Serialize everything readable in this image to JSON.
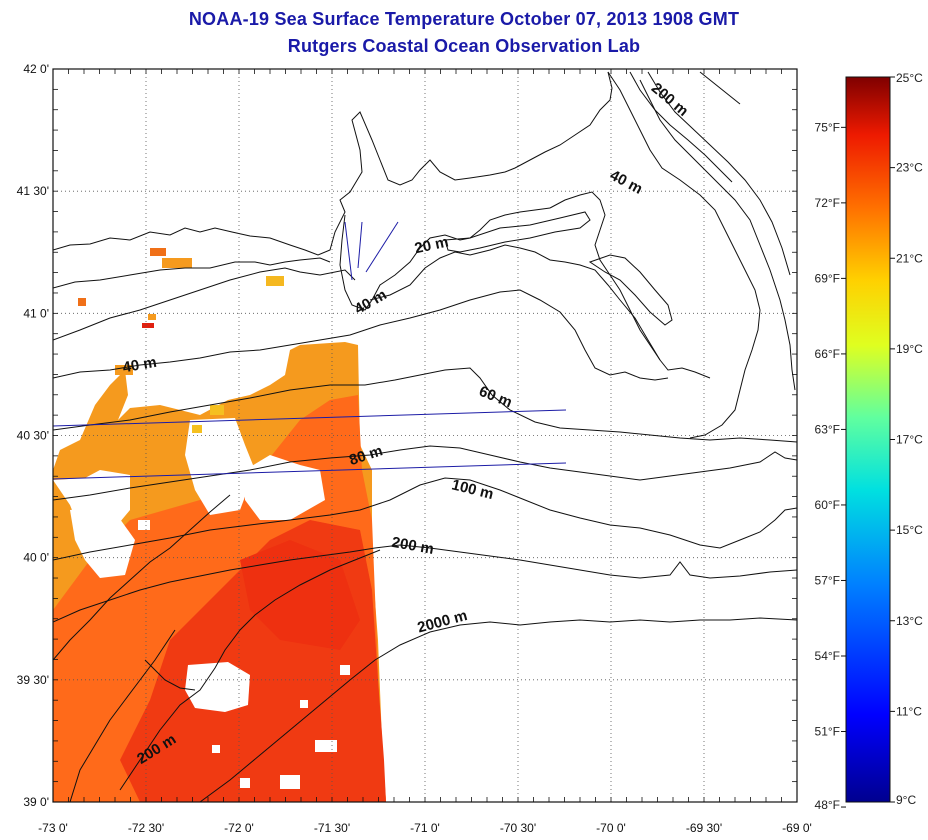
{
  "title": "NOAA-19 Sea Surface Temperature October 07, 2013 1908 GMT",
  "subtitle": "Rutgers Coastal Ocean Observation Lab",
  "colors": {
    "title": "#1a1aa8",
    "sst_warm": "#ff6a1a",
    "sst_hot": "#f03a12",
    "sst_mid": "#f59a1e",
    "ship_track": "#1c1ca6",
    "contour": "#111111"
  },
  "map": {
    "lon_range": [
      -73.0,
      -69.0
    ],
    "lat_range": [
      39.0,
      42.0
    ],
    "lon_ticks": [
      "-73 0'",
      "-72 30'",
      "-72 0'",
      "-71 30'",
      "-71 0'",
      "-70 30'",
      "-70 0'",
      "-69 30'",
      "-69 0'"
    ],
    "lat_ticks": [
      "39 0'",
      "39 30'",
      "40 0'",
      "40 30'",
      "41 0'",
      "41 30'",
      "42 0'"
    ]
  },
  "contour_labels": [
    {
      "text": "20 m",
      "lon": -70.96,
      "lat": 41.26
    },
    {
      "text": "40 m",
      "lon": -71.28,
      "lat": 41.03
    },
    {
      "text": "40 m",
      "lon": -72.53,
      "lat": 40.77
    },
    {
      "text": "40 m",
      "lon": -69.93,
      "lat": 41.52
    },
    {
      "text": "60 m",
      "lon": -70.63,
      "lat": 40.64
    },
    {
      "text": "80 m",
      "lon": -71.31,
      "lat": 40.4
    },
    {
      "text": "100 m",
      "lon": -70.75,
      "lat": 40.26
    },
    {
      "text": "200 m",
      "lon": -71.07,
      "lat": 40.03
    },
    {
      "text": "200 m",
      "lon": -69.7,
      "lat": 41.86
    },
    {
      "text": "200 m",
      "lon": -72.43,
      "lat": 39.2
    },
    {
      "text": "2000 m",
      "lon": -70.9,
      "lat": 39.72
    }
  ],
  "colorbar": {
    "celsius": [
      "25°C",
      "23°C",
      "21°C",
      "19°C",
      "17°C",
      "15°C",
      "13°C",
      "11°C",
      "9°C"
    ],
    "fahrenheit": [
      "75°F",
      "72°F",
      "69°F",
      "66°F",
      "63°F",
      "60°F",
      "57°F",
      "54°F",
      "51°F",
      "48°F"
    ],
    "range_c": [
      9,
      25
    ]
  }
}
